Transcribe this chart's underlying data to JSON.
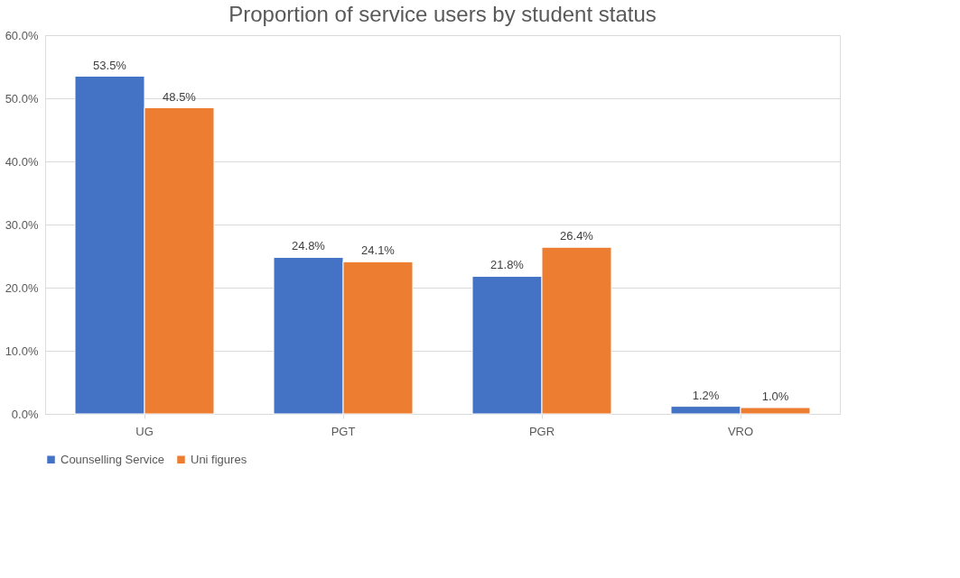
{
  "chart_data": {
    "type": "bar",
    "title": "Proportion of service users by student status",
    "categories": [
      "UG",
      "PGT",
      "PGR",
      "VRO"
    ],
    "series": [
      {
        "name": "Counselling Service",
        "color": "#4472c4",
        "values": [
          53.5,
          24.8,
          21.8,
          1.2
        ],
        "value_labels": [
          "53.5%",
          "24.8%",
          "21.8%",
          "1.2%"
        ]
      },
      {
        "name": "Uni figures",
        "color": "#ed7d31",
        "values": [
          48.5,
          24.1,
          26.4,
          1.0
        ],
        "value_labels": [
          "48.5%",
          "24.1%",
          "26.4%",
          "1.0%"
        ]
      }
    ],
    "ylim": [
      0,
      60
    ],
    "yticks": [
      {
        "value": 0,
        "label": "0.0%"
      },
      {
        "value": 10,
        "label": "10.0%"
      },
      {
        "value": 20,
        "label": "20.0%"
      },
      {
        "value": 30,
        "label": "30.0%"
      },
      {
        "value": 40,
        "label": "40.0%"
      },
      {
        "value": 50,
        "label": "50.0%"
      },
      {
        "value": 60,
        "label": "60.0%"
      }
    ],
    "grid": "y",
    "legend": "bottom"
  }
}
